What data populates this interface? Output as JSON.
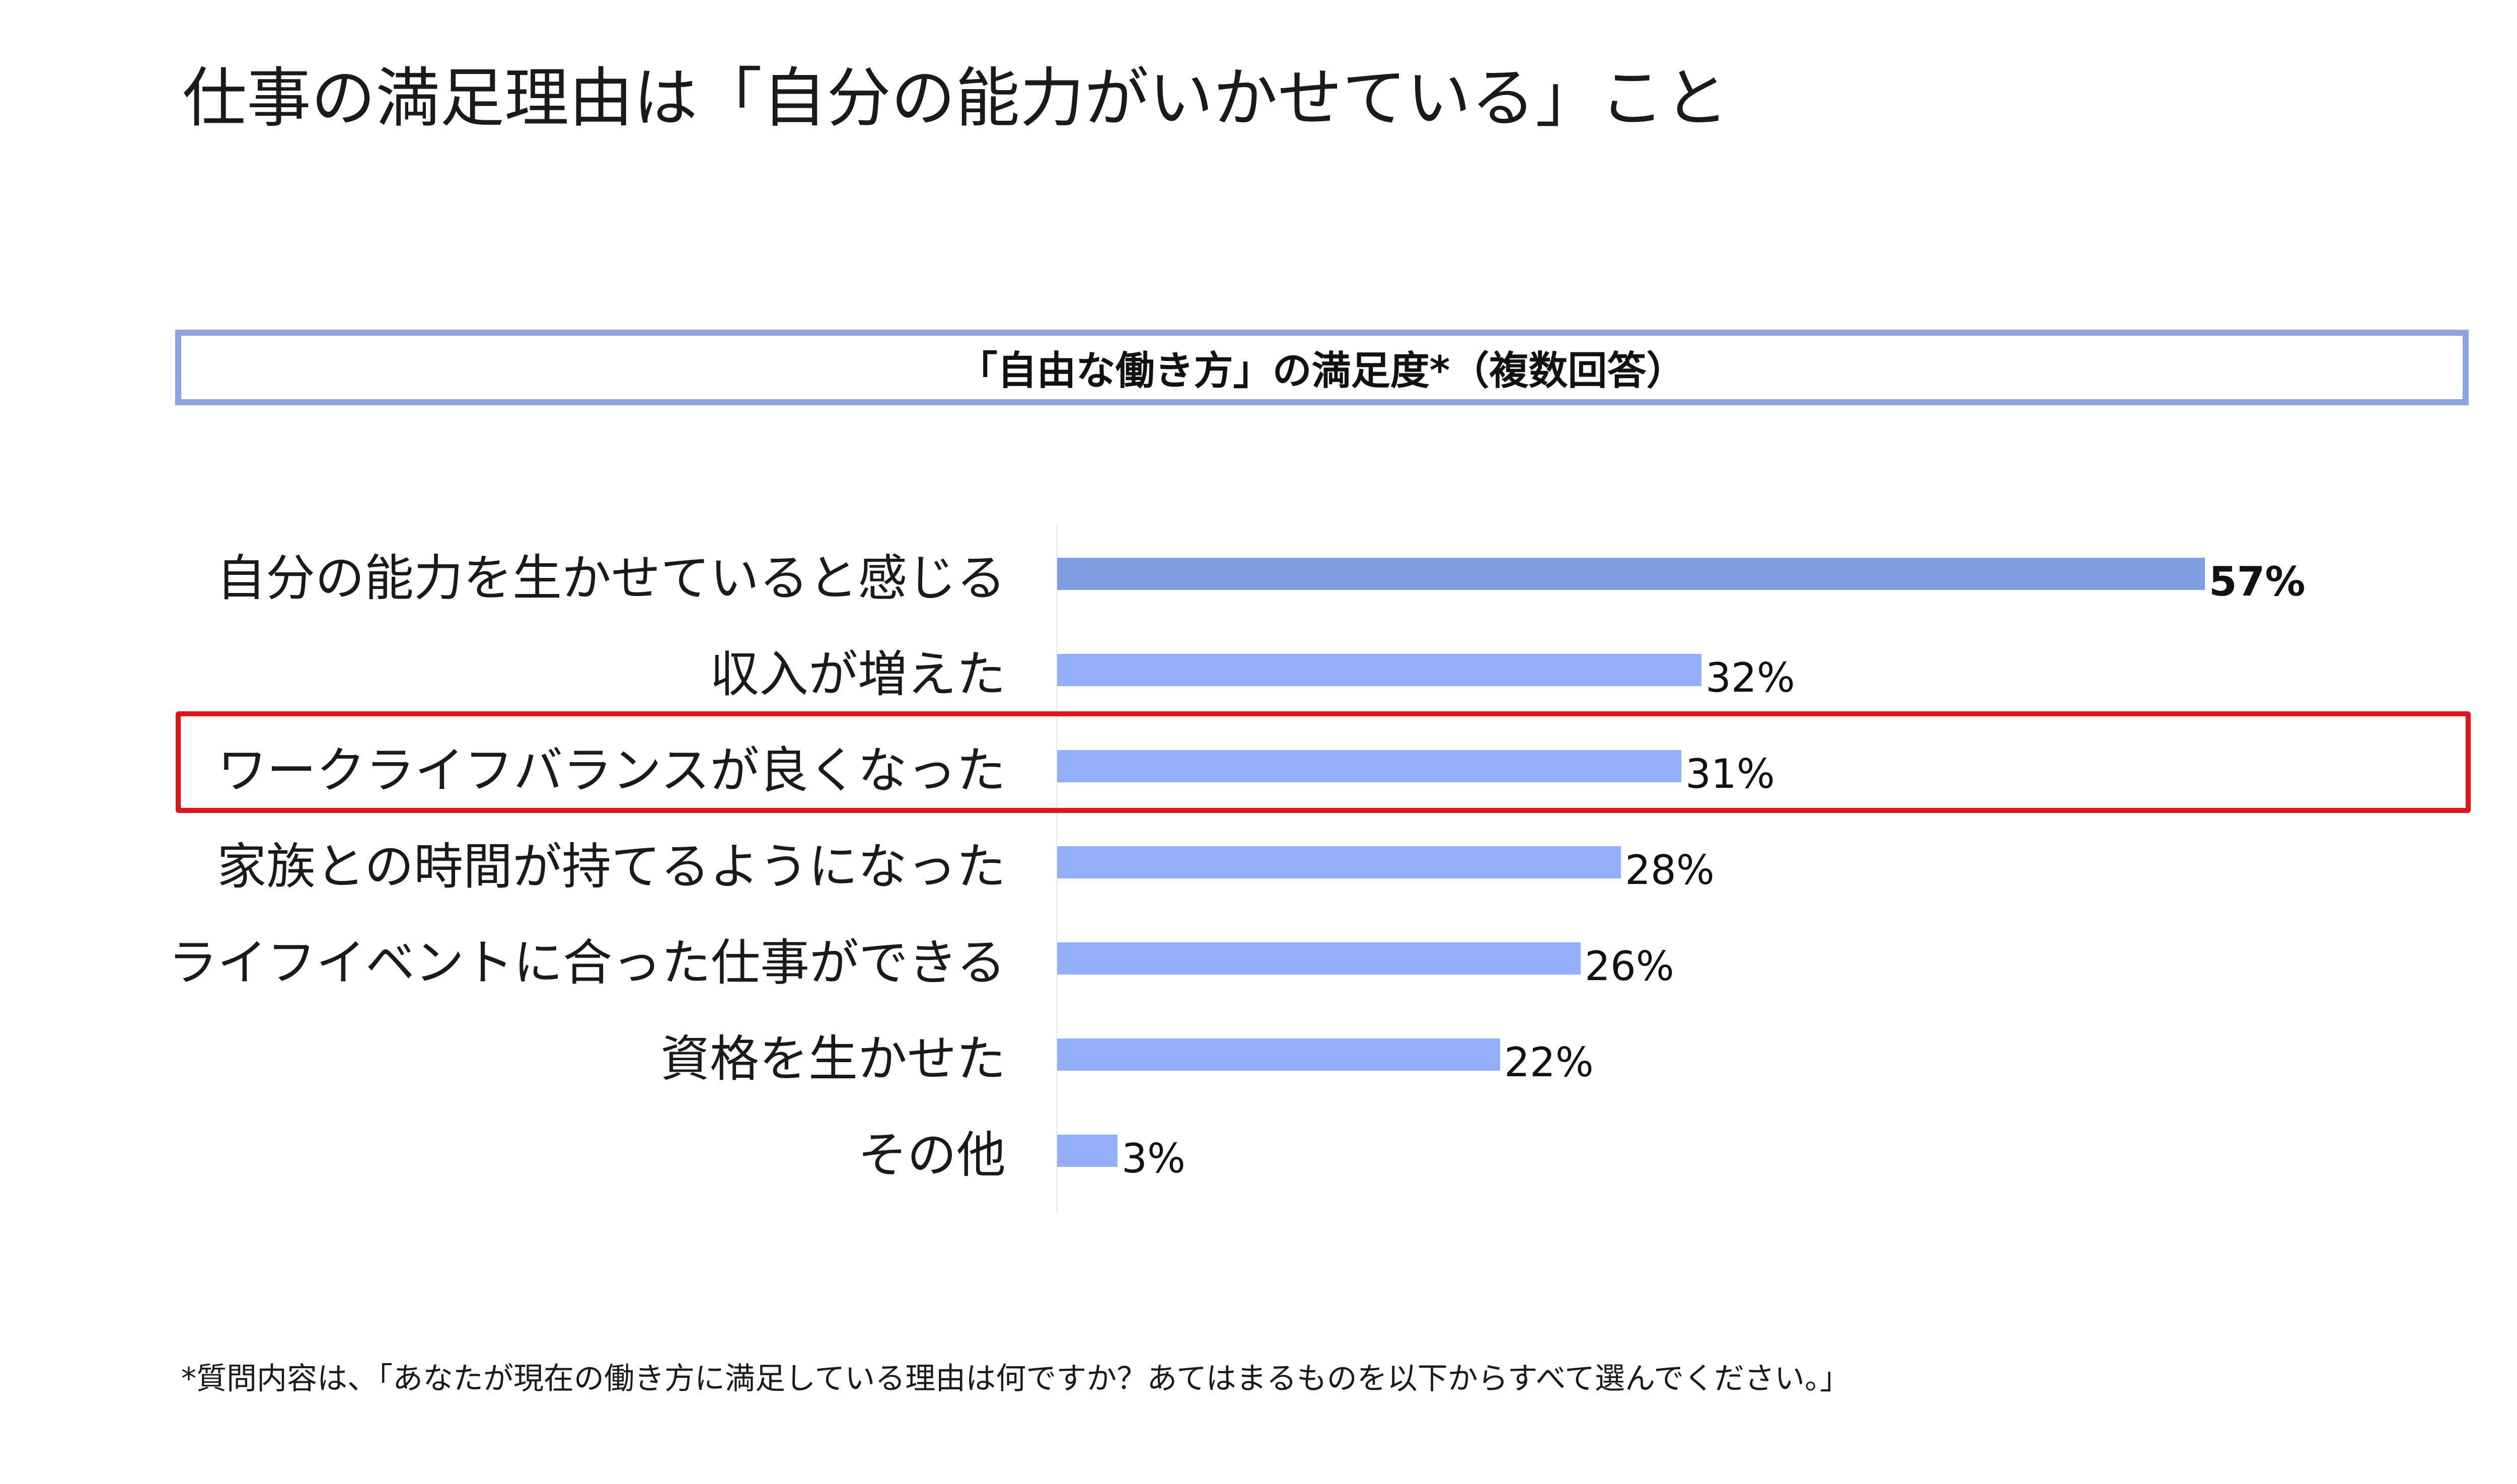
{
  "title": "仕事の満足理由は「自分の能力がいかせている」こと",
  "subtitle": "「自由な働き方」の満足度*（複数回答）",
  "footnote": "*質問内容は、「あなたが現在の働き方に満足している理由は何ですか？あてはまるものを以下からすべて選んでください。」",
  "colors": {
    "bar": "#94affa",
    "bar_top": "#7f9de4",
    "frame": "#8ea2e2",
    "highlight": "#e0141b"
  },
  "chart_data": {
    "type": "bar",
    "orientation": "horizontal",
    "title": "「自由な働き方」の満足度*（複数回答）",
    "categories": [
      "自分の能力を生かせていると感じる",
      "収入が増えた",
      "ワークライフバランスが良くなった",
      "家族との時間が持てるようになった",
      "ライフイベントに合った仕事ができる",
      "資格を生かせた",
      "その他"
    ],
    "values": [
      57,
      32,
      31,
      28,
      26,
      22,
      3
    ],
    "value_labels": [
      "57%",
      "32%",
      "31%",
      "28%",
      "26%",
      "22%",
      "3%"
    ],
    "unit": "%",
    "highlighted_category": "ワークライフバランスが良くなった",
    "bold_value_index": 0,
    "grid": false,
    "legend": "none"
  }
}
